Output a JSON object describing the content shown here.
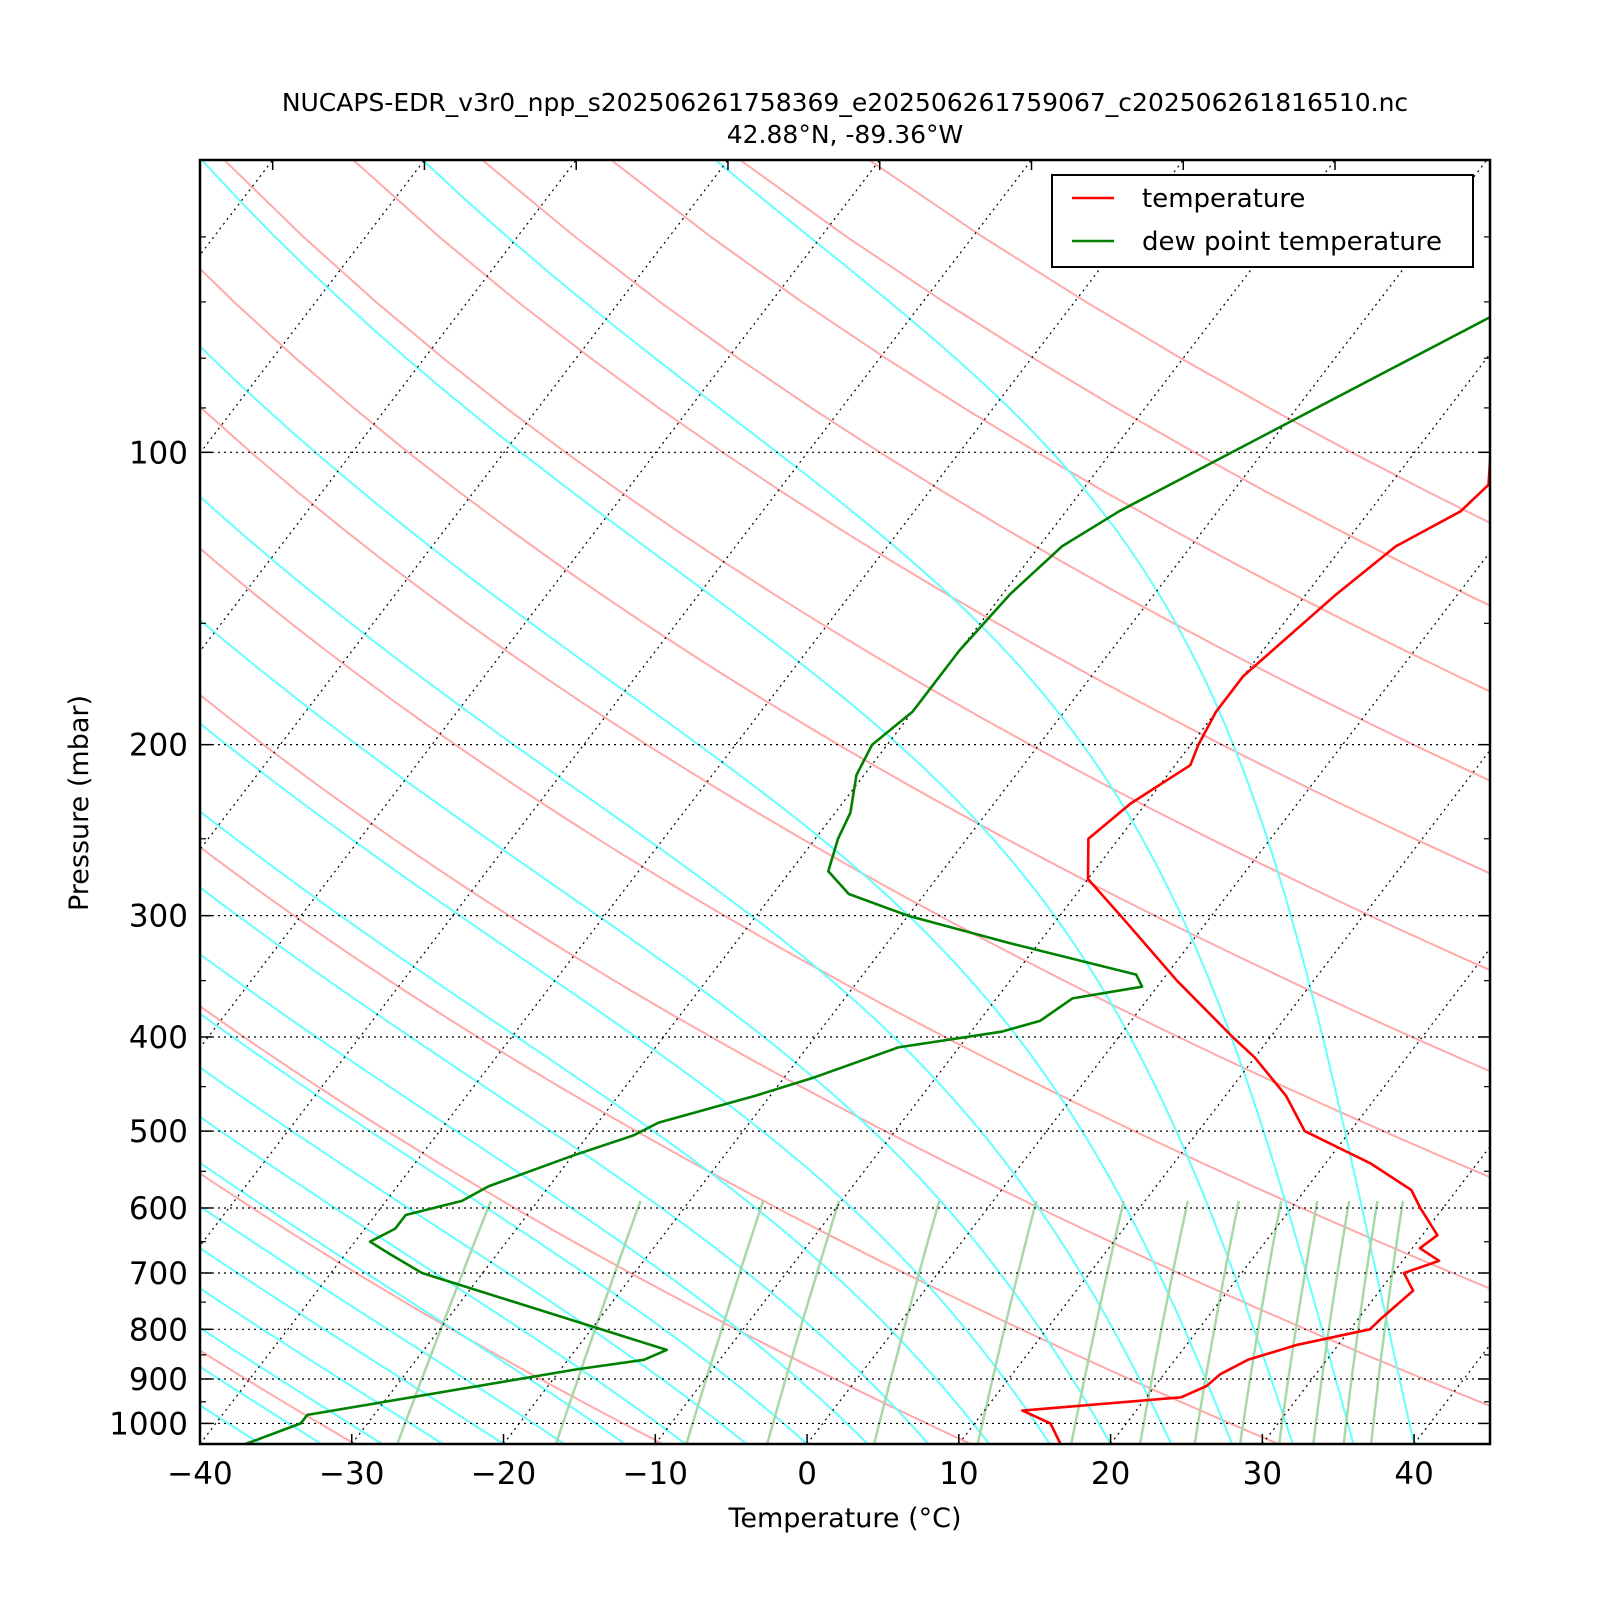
{
  "chart_data": {
    "type": "line",
    "subtype": "skew-T log-P diagram",
    "title": "NUCAPS-EDR_v3r0_npp_s202506261758369_e202506261759067_c202506261816510.nc",
    "subtitle": "42.88°N, -89.36°W",
    "xlabel": "Temperature (°C)",
    "ylabel": "Pressure (mbar)",
    "xlim": [
      -40,
      45
    ],
    "ylim": [
      1050,
      50
    ],
    "yscale": "log",
    "skew_degrees_per_decade": 49,
    "x_ticks": [
      -40,
      -30,
      -20,
      -10,
      0,
      10,
      20,
      30,
      40
    ],
    "x_tick_labels": [
      "−40",
      "−30",
      "−20",
      "−10",
      "0",
      "10",
      "20",
      "30",
      "40"
    ],
    "y_ticks": [
      100,
      200,
      300,
      400,
      500,
      600,
      700,
      800,
      900,
      1000
    ],
    "y_tick_labels": [
      "100",
      "200",
      "300",
      "400",
      "500",
      "600",
      "700",
      "800",
      "900",
      "1000"
    ],
    "grid": "dotted isobars and skewed isotherms",
    "legend_position": "top-right",
    "series": [
      {
        "name": "temperature",
        "color": "#ff0000",
        "points": [
          [
            1050,
            16.7
          ],
          [
            1000,
            15.0
          ],
          [
            970,
            12.5
          ],
          [
            940,
            22.3
          ],
          [
            915,
            23.4
          ],
          [
            890,
            23.7
          ],
          [
            860,
            24.8
          ],
          [
            830,
            27.3
          ],
          [
            800,
            31.3
          ],
          [
            780,
            31.5
          ],
          [
            730,
            32.2
          ],
          [
            700,
            30.7
          ],
          [
            680,
            32.4
          ],
          [
            660,
            30.5
          ],
          [
            640,
            31.0
          ],
          [
            600,
            28.5
          ],
          [
            575,
            27.0
          ],
          [
            540,
            23.0
          ],
          [
            500,
            17.0
          ],
          [
            460,
            14.0
          ],
          [
            420,
            10.0
          ],
          [
            400,
            7.5
          ],
          [
            350,
            1.0
          ],
          [
            300,
            -6.0
          ],
          [
            275,
            -10.0
          ],
          [
            250,
            -12.0
          ],
          [
            230,
            -11.0
          ],
          [
            210,
            -9.0
          ],
          [
            200,
            -9.5
          ],
          [
            185,
            -10.0
          ],
          [
            170,
            -10.0
          ],
          [
            140,
            -8.0
          ],
          [
            125,
            -6.5
          ],
          [
            115,
            -4.0
          ],
          [
            108,
            -3.5
          ],
          [
            100,
            -5.0
          ],
          [
            95,
            -6.0
          ],
          [
            85,
            -8.0
          ],
          [
            75,
            -8.0
          ],
          [
            65,
            -7.0
          ],
          [
            50,
            -4.0
          ]
        ]
      },
      {
        "name": "dew point temperature",
        "color": "#008000",
        "points": [
          [
            1050,
            -37.0
          ],
          [
            1000,
            -34.4
          ],
          [
            980,
            -34.4
          ],
          [
            880,
            -19.0
          ],
          [
            860,
            -15.0
          ],
          [
            840,
            -14.0
          ],
          [
            700,
            -34.0
          ],
          [
            670,
            -37.0
          ],
          [
            650,
            -39.0
          ],
          [
            630,
            -38.0
          ],
          [
            610,
            -38.0
          ],
          [
            590,
            -35.0
          ],
          [
            570,
            -34.0
          ],
          [
            530,
            -30.0
          ],
          [
            505,
            -27.0
          ],
          [
            490,
            -26.0
          ],
          [
            460,
            -21.0
          ],
          [
            440,
            -18.0
          ],
          [
            410,
            -14.0
          ],
          [
            395,
            -8.0
          ],
          [
            385,
            -6.0
          ],
          [
            365,
            -5.0
          ],
          [
            355,
            -1.0
          ],
          [
            345,
            -2.0
          ],
          [
            320,
            -12.0
          ],
          [
            300,
            -20.0
          ],
          [
            285,
            -25.0
          ],
          [
            270,
            -27.5
          ],
          [
            250,
            -28.5
          ],
          [
            235,
            -29.0
          ],
          [
            215,
            -30.5
          ],
          [
            200,
            -31.0
          ],
          [
            185,
            -30.0
          ],
          [
            160,
            -30.0
          ],
          [
            140,
            -29.5
          ],
          [
            125,
            -28.5
          ],
          [
            115,
            -26.5
          ],
          [
            50,
            0.0
          ]
        ]
      }
    ],
    "background_lines": {
      "dry_adiabats_color": "#ffaaaa",
      "moist_adiabats_color": "#66ffff",
      "mixing_ratio_color": "#a8d8a8",
      "isobar_color": "#000000"
    }
  }
}
